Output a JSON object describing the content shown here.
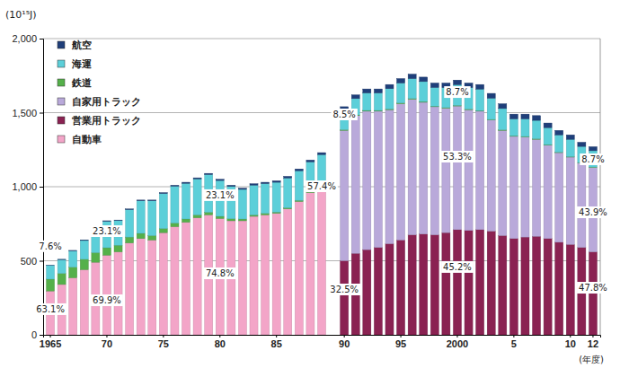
{
  "chart_data": {
    "type": "bar",
    "stacked": true,
    "grid": true,
    "legend": "upper left",
    "y_label": "(10¹⁵J)",
    "x_label": "(年度)",
    "categories": [
      "1965",
      null,
      null,
      null,
      null,
      "70",
      null,
      null,
      null,
      null,
      "75",
      null,
      null,
      null,
      null,
      "80",
      null,
      null,
      null,
      null,
      "85",
      null,
      null,
      null,
      null,
      null,
      "90",
      null,
      null,
      null,
      null,
      "95",
      null,
      null,
      null,
      null,
      "2000",
      null,
      null,
      null,
      null,
      "5",
      null,
      null,
      null,
      null,
      "10",
      null,
      "12"
    ],
    "ylim": [
      0,
      2000
    ],
    "yticks": [
      0,
      500,
      {
        "value": 1000,
        "label": "1,000"
      },
      {
        "value": 1500,
        "label": "1,500"
      },
      {
        "value": 2000,
        "label": "2,000"
      }
    ],
    "series": [
      {
        "name": "航空",
        "color": "#1f3f7a",
        "values": [
          2,
          2,
          3,
          3,
          3,
          4,
          4,
          5,
          5,
          5,
          6,
          6,
          7,
          7,
          8,
          8,
          8,
          8,
          9,
          9,
          10,
          11,
          12,
          12,
          13,
          null,
          25,
          25,
          27,
          27,
          28,
          30,
          30,
          30,
          30,
          31,
          31,
          31,
          31,
          32,
          32,
          32,
          32,
          32,
          31,
          30,
          30,
          28,
          27
        ]
      },
      {
        "name": "海運",
        "color": "#5ccfd9",
        "values": [
          92,
          93,
          110,
          127,
          152,
          178,
          166,
          185,
          220,
          235,
          236,
          249,
          241,
          243,
          254,
          242,
          218,
          200,
          201,
          201,
          201,
          201,
          200,
          200,
          210,
          null,
          130,
          110,
          118,
          118,
          137,
          135,
          135,
          135,
          126,
          135,
          140,
          145,
          145,
          144,
          144,
          114,
          119,
          124,
          115,
          117,
          117,
          109,
          110
        ]
      },
      {
        "name": "鉄道",
        "color": "#55b04a",
        "values": [
          80,
          75,
          72,
          70,
          65,
          50,
          45,
          40,
          35,
          30,
          28,
          25,
          22,
          20,
          18,
          15,
          14,
          12,
          10,
          10,
          9,
          8,
          8,
          8,
          7,
          null,
          5,
          5,
          5,
          5,
          5,
          5,
          5,
          5,
          4,
          4,
          4,
          4,
          4,
          4,
          4,
          4,
          4,
          4,
          4,
          3,
          3,
          3,
          3
        ]
      },
      {
        "name": "自家用トラック",
        "color": "#b9a9da",
        "values": [
          null,
          null,
          null,
          null,
          null,
          null,
          null,
          null,
          null,
          null,
          null,
          null,
          null,
          null,
          null,
          null,
          null,
          null,
          null,
          null,
          null,
          null,
          null,
          null,
          null,
          null,
          880,
          930,
          935,
          920,
          905,
          920,
          915,
          890,
          865,
          840,
          835,
          815,
          800,
          750,
          710,
          690,
          675,
          655,
          630,
          605,
          590,
          570,
          570
        ]
      },
      {
        "name": "営業用トラック",
        "color": "#8a2252",
        "values": [
          null,
          null,
          null,
          null,
          null,
          null,
          null,
          null,
          null,
          null,
          null,
          null,
          null,
          null,
          null,
          null,
          null,
          null,
          null,
          null,
          null,
          null,
          null,
          null,
          null,
          null,
          500,
          550,
          575,
          590,
          615,
          640,
          675,
          680,
          675,
          690,
          710,
          705,
          710,
          700,
          670,
          650,
          660,
          665,
          650,
          625,
          610,
          590,
          560
        ]
      },
      {
        "name": "自動車",
        "color": "#f3a5c8",
        "values": [
          296,
          340,
          385,
          440,
          490,
          538,
          560,
          620,
          650,
          640,
          690,
          730,
          760,
          790,
          810,
          785,
          770,
          770,
          800,
          810,
          820,
          850,
          900,
          960,
          1000,
          null,
          null,
          null,
          null,
          null,
          null,
          null,
          null,
          null,
          null,
          null,
          null,
          null,
          null,
          null,
          null,
          null,
          null,
          null,
          null,
          null,
          null,
          null,
          null
        ]
      }
    ],
    "annotations": [
      {
        "text": "7.6%",
        "x": 0,
        "y": 595
      },
      {
        "text": "63.1%",
        "x": 0,
        "y": 170
      },
      {
        "text": "23.1%",
        "x": 5,
        "y": 697
      },
      {
        "text": "69.9%",
        "x": 5,
        "y": 230
      },
      {
        "text": "23.1%",
        "x": 15,
        "y": 940
      },
      {
        "text": "74.8%",
        "x": 15,
        "y": 412
      },
      {
        "text": "57.4%",
        "x": 24,
        "y": 1000
      },
      {
        "text": "8.5%",
        "x": 26,
        "y": 1485
      },
      {
        "text": "32.5%",
        "x": 26,
        "y": 303
      },
      {
        "text": "8.7%",
        "x": 36,
        "y": 1636
      },
      {
        "text": "53.3%",
        "x": 36,
        "y": 1200
      },
      {
        "text": "45.2%",
        "x": 36,
        "y": 455
      },
      {
        "text": "8.7%",
        "x": 48,
        "y": 1182
      },
      {
        "text": "43.9%",
        "x": 48,
        "y": 824
      },
      {
        "text": "47.8%",
        "x": 48,
        "y": 315
      }
    ]
  }
}
